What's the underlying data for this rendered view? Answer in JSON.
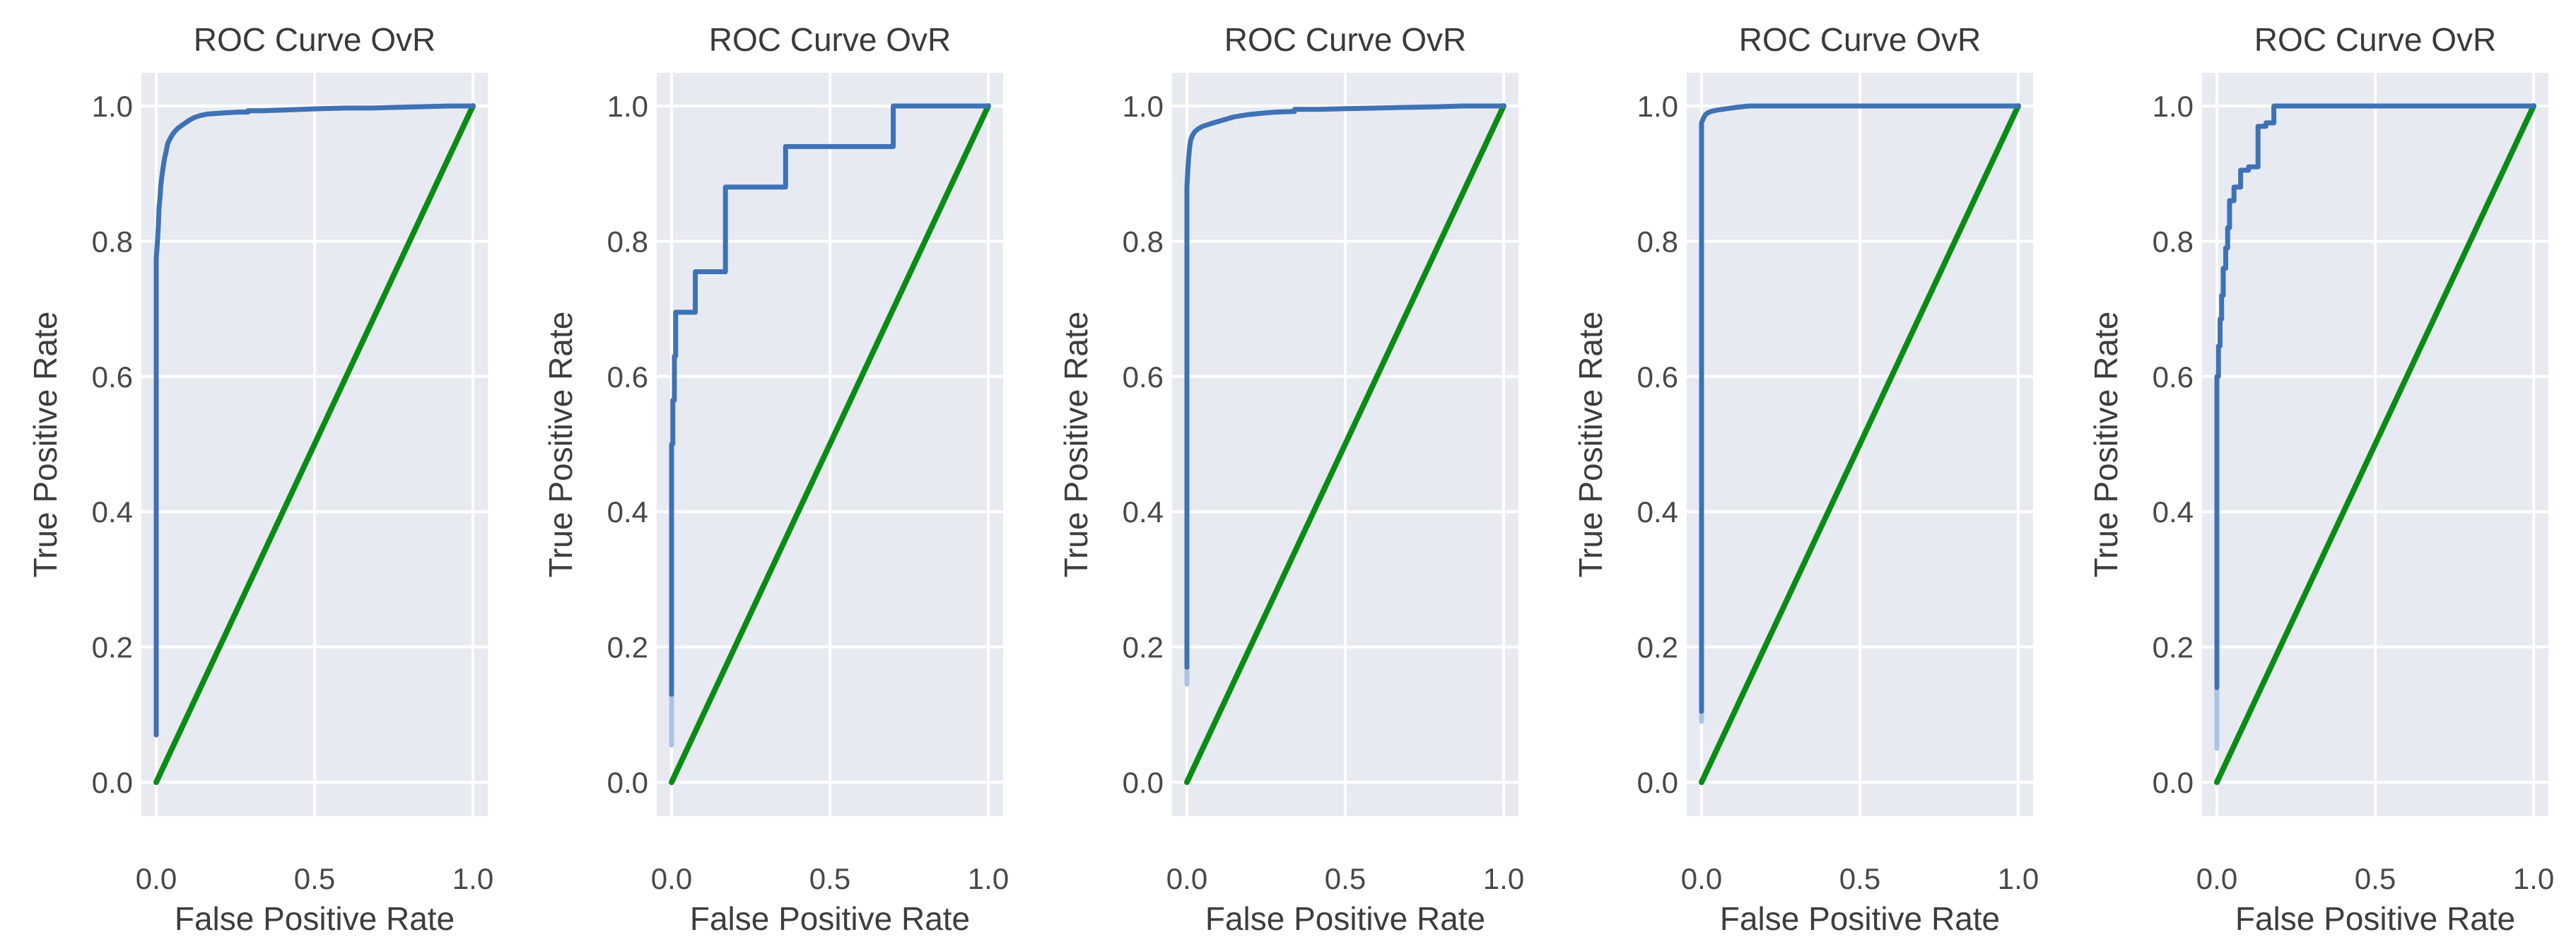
{
  "figure": {
    "background": "#ffffff",
    "num_subplots": 5,
    "description": "Row of five one-vs-rest ROC curve subplots"
  },
  "style": {
    "plot_background": "#e8eaf2",
    "gridline_color": "#ffffff",
    "roc_color": "#3e72b4",
    "roc_fade_color": "#aac4e2",
    "diagonal_color": "#0a8c14",
    "title_color": "#3a3a3a",
    "tick_color": "#484848",
    "label_color": "#3d3d3d"
  },
  "chart_data": [
    {
      "type": "line",
      "title": "ROC Curve OvR",
      "xlabel": "False Positive Rate",
      "ylabel": "True Positive Rate",
      "xlim": [
        -0.05,
        1.05
      ],
      "ylim": [
        -0.05,
        1.05
      ],
      "grid": true,
      "legend": null,
      "x_tick_labels": [
        "0.0",
        "0.5",
        "1.0"
      ],
      "x_tick_values": [
        0,
        0.5,
        1
      ],
      "y_tick_labels": [
        "0.0",
        "0.2",
        "0.4",
        "0.6",
        "0.8",
        "1.0"
      ],
      "y_tick_values": [
        0,
        0.2,
        0.4,
        0.6,
        0.8,
        1
      ],
      "series": [
        {
          "name": "ROC curve",
          "color": "#3e72b4",
          "points": [
            [
              0,
              0.07
            ],
            [
              0,
              0.775
            ],
            [
              0.004,
              0.8
            ],
            [
              0.007,
              0.825
            ],
            [
              0.009,
              0.85
            ],
            [
              0.012,
              0.865
            ],
            [
              0.015,
              0.885
            ],
            [
              0.019,
              0.9
            ],
            [
              0.023,
              0.913
            ],
            [
              0.027,
              0.924
            ],
            [
              0.031,
              0.932
            ],
            [
              0.036,
              0.944
            ],
            [
              0.042,
              0.95
            ],
            [
              0.05,
              0.957
            ],
            [
              0.058,
              0.962
            ],
            [
              0.068,
              0.967
            ],
            [
              0.08,
              0.971
            ],
            [
              0.092,
              0.975
            ],
            [
              0.105,
              0.979
            ],
            [
              0.12,
              0.983
            ],
            [
              0.14,
              0.986
            ],
            [
              0.16,
              0.988
            ],
            [
              0.19,
              0.989
            ],
            [
              0.22,
              0.99
            ],
            [
              0.26,
              0.991
            ],
            [
              0.29,
              0.991
            ],
            [
              0.29,
              0.993
            ],
            [
              0.34,
              0.993
            ],
            [
              0.4,
              0.994
            ],
            [
              0.46,
              0.995
            ],
            [
              0.52,
              0.996
            ],
            [
              0.6,
              0.997
            ],
            [
              0.68,
              0.997
            ],
            [
              0.76,
              0.998
            ],
            [
              0.84,
              0.999
            ],
            [
              0.93,
              1.0
            ],
            [
              1.0,
              1.0
            ]
          ]
        },
        {
          "name": "chance diagonal",
          "color": "#0a8c14",
          "points": [
            [
              0,
              0
            ],
            [
              1,
              1
            ]
          ]
        }
      ],
      "start_fade": null
    },
    {
      "type": "line",
      "title": "ROC Curve OvR",
      "xlabel": "False Positive Rate",
      "ylabel": "True Positive Rate",
      "xlim": [
        -0.05,
        1.05
      ],
      "ylim": [
        -0.05,
        1.05
      ],
      "grid": true,
      "legend": null,
      "x_tick_labels": [
        "0.0",
        "0.5",
        "1.0"
      ],
      "x_tick_values": [
        0,
        0.5,
        1
      ],
      "y_tick_labels": [
        "0.0",
        "0.2",
        "0.4",
        "0.6",
        "0.8",
        "1.0"
      ],
      "y_tick_values": [
        0,
        0.2,
        0.4,
        0.6,
        0.8,
        1
      ],
      "series": [
        {
          "name": "ROC curve",
          "color": "#3e72b4",
          "points": [
            [
              0,
              0.13
            ],
            [
              0,
              0.5
            ],
            [
              0.004,
              0.5
            ],
            [
              0.004,
              0.565
            ],
            [
              0.009,
              0.565
            ],
            [
              0.009,
              0.63
            ],
            [
              0.013,
              0.63
            ],
            [
              0.013,
              0.695
            ],
            [
              0.075,
              0.695
            ],
            [
              0.075,
              0.755
            ],
            [
              0.17,
              0.755
            ],
            [
              0.17,
              0.88
            ],
            [
              0.36,
              0.88
            ],
            [
              0.36,
              0.94
            ],
            [
              0.7,
              0.94
            ],
            [
              0.7,
              1.0
            ],
            [
              1.0,
              1.0
            ]
          ]
        },
        {
          "name": "chance diagonal",
          "color": "#0a8c14",
          "points": [
            [
              0,
              0
            ],
            [
              1,
              1
            ]
          ]
        }
      ],
      "start_fade": {
        "x": 0,
        "from": 0.055,
        "to": 0.13
      }
    },
    {
      "type": "line",
      "title": "ROC Curve OvR",
      "xlabel": "False Positive Rate",
      "ylabel": "True Positive Rate",
      "xlim": [
        -0.05,
        1.05
      ],
      "ylim": [
        -0.05,
        1.05
      ],
      "grid": true,
      "legend": null,
      "x_tick_labels": [
        "0.0",
        "0.5",
        "1.0"
      ],
      "x_tick_values": [
        0,
        0.5,
        1
      ],
      "y_tick_labels": [
        "0.0",
        "0.2",
        "0.4",
        "0.6",
        "0.8",
        "1.0"
      ],
      "y_tick_values": [
        0,
        0.2,
        0.4,
        0.6,
        0.8,
        1
      ],
      "series": [
        {
          "name": "ROC curve",
          "color": "#3e72b4",
          "points": [
            [
              0,
              0.17
            ],
            [
              0,
              0.88
            ],
            [
              0.003,
              0.905
            ],
            [
              0.005,
              0.92
            ],
            [
              0.008,
              0.937
            ],
            [
              0.012,
              0.95
            ],
            [
              0.018,
              0.957
            ],
            [
              0.025,
              0.962
            ],
            [
              0.035,
              0.966
            ],
            [
              0.05,
              0.97
            ],
            [
              0.07,
              0.973
            ],
            [
              0.09,
              0.976
            ],
            [
              0.12,
              0.98
            ],
            [
              0.15,
              0.984
            ],
            [
              0.19,
              0.987
            ],
            [
              0.23,
              0.989
            ],
            [
              0.28,
              0.991
            ],
            [
              0.34,
              0.992
            ],
            [
              0.34,
              0.995
            ],
            [
              0.42,
              0.995
            ],
            [
              0.5,
              0.996
            ],
            [
              0.6,
              0.997
            ],
            [
              0.7,
              0.998
            ],
            [
              0.8,
              0.999
            ],
            [
              0.87,
              1.0
            ],
            [
              1.0,
              1.0
            ]
          ]
        },
        {
          "name": "chance diagonal",
          "color": "#0a8c14",
          "points": [
            [
              0,
              0
            ],
            [
              1,
              1
            ]
          ]
        }
      ],
      "start_fade": {
        "x": 0,
        "from": 0.145,
        "to": 0.17
      }
    },
    {
      "type": "line",
      "title": "ROC Curve OvR",
      "xlabel": "False Positive Rate",
      "ylabel": "True Positive Rate",
      "xlim": [
        -0.05,
        1.05
      ],
      "ylim": [
        -0.05,
        1.05
      ],
      "grid": true,
      "legend": null,
      "x_tick_labels": [
        "0.0",
        "0.5",
        "1.0"
      ],
      "x_tick_values": [
        0,
        0.5,
        1
      ],
      "y_tick_labels": [
        "0.0",
        "0.2",
        "0.4",
        "0.6",
        "0.8",
        "1.0"
      ],
      "y_tick_values": [
        0,
        0.2,
        0.4,
        0.6,
        0.8,
        1
      ],
      "series": [
        {
          "name": "ROC curve",
          "color": "#3e72b4",
          "points": [
            [
              0,
              0.105
            ],
            [
              0,
              0.975
            ],
            [
              0.006,
              0.982
            ],
            [
              0.012,
              0.987
            ],
            [
              0.02,
              0.99
            ],
            [
              0.03,
              0.992
            ],
            [
              0.05,
              0.994
            ],
            [
              0.08,
              0.996
            ],
            [
              0.11,
              0.998
            ],
            [
              0.15,
              1.0
            ],
            [
              1.0,
              1.0
            ]
          ]
        },
        {
          "name": "chance diagonal",
          "color": "#0a8c14",
          "points": [
            [
              0,
              0
            ],
            [
              1,
              1
            ]
          ]
        }
      ],
      "start_fade": {
        "x": 0,
        "from": 0.09,
        "to": 0.105
      }
    },
    {
      "type": "line",
      "title": "ROC Curve OvR",
      "xlabel": "False Positive Rate",
      "ylabel": "True Positive Rate",
      "xlim": [
        -0.05,
        1.05
      ],
      "ylim": [
        -0.05,
        1.05
      ],
      "grid": true,
      "legend": null,
      "x_tick_labels": [
        "0.0",
        "0.5",
        "1.0"
      ],
      "x_tick_values": [
        0,
        0.5,
        1
      ],
      "y_tick_labels": [
        "0.0",
        "0.2",
        "0.4",
        "0.6",
        "0.8",
        "1.0"
      ],
      "y_tick_values": [
        0,
        0.2,
        0.4,
        0.6,
        0.8,
        1
      ],
      "series": [
        {
          "name": "ROC curve",
          "color": "#3e72b4",
          "points": [
            [
              0,
              0.14
            ],
            [
              0,
              0.6
            ],
            [
              0.005,
              0.6
            ],
            [
              0.005,
              0.645
            ],
            [
              0.01,
              0.645
            ],
            [
              0.01,
              0.685
            ],
            [
              0.015,
              0.685
            ],
            [
              0.015,
              0.72
            ],
            [
              0.02,
              0.72
            ],
            [
              0.02,
              0.76
            ],
            [
              0.028,
              0.76
            ],
            [
              0.028,
              0.79
            ],
            [
              0.034,
              0.79
            ],
            [
              0.034,
              0.82
            ],
            [
              0.04,
              0.82
            ],
            [
              0.04,
              0.86
            ],
            [
              0.054,
              0.86
            ],
            [
              0.054,
              0.88
            ],
            [
              0.075,
              0.88
            ],
            [
              0.075,
              0.905
            ],
            [
              0.1,
              0.905
            ],
            [
              0.1,
              0.91
            ],
            [
              0.13,
              0.91
            ],
            [
              0.13,
              0.97
            ],
            [
              0.155,
              0.97
            ],
            [
              0.155,
              0.975
            ],
            [
              0.18,
              0.975
            ],
            [
              0.18,
              1.0
            ],
            [
              1.0,
              1.0
            ]
          ]
        },
        {
          "name": "chance diagonal",
          "color": "#0a8c14",
          "points": [
            [
              0,
              0
            ],
            [
              1,
              1
            ]
          ]
        }
      ],
      "start_fade": {
        "x": 0,
        "from": 0.05,
        "to": 0.14
      }
    }
  ]
}
